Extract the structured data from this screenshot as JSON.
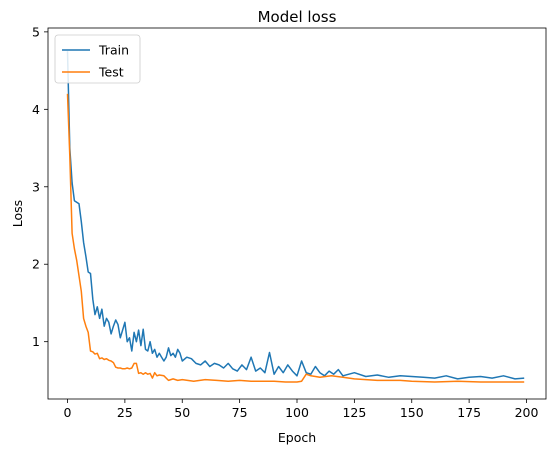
{
  "chart_data": {
    "type": "line",
    "title": "Model loss",
    "xlabel": "Epoch",
    "ylabel": "Loss",
    "xlim": [
      -8.5,
      208.5
    ],
    "ylim": [
      0.26,
      5.05
    ],
    "xticks": [
      0,
      25,
      50,
      75,
      100,
      125,
      150,
      175,
      200
    ],
    "yticks": [
      1,
      2,
      3,
      4,
      5
    ],
    "grid": false,
    "legend_position": "top-left",
    "series": [
      {
        "name": "Train",
        "color": "#1f77b4",
        "x": [
          0,
          1,
          2,
          3,
          4,
          5,
          6,
          7,
          8,
          9,
          10,
          11,
          12,
          13,
          14,
          15,
          16,
          17,
          18,
          19,
          20,
          21,
          22,
          23,
          24,
          25,
          26,
          27,
          28,
          29,
          30,
          31,
          32,
          33,
          34,
          35,
          36,
          37,
          38,
          39,
          40,
          41,
          42,
          43,
          44,
          45,
          46,
          47,
          48,
          49,
          50,
          52,
          54,
          56,
          58,
          60,
          62,
          64,
          66,
          68,
          70,
          72,
          74,
          76,
          78,
          80,
          82,
          84,
          86,
          88,
          90,
          92,
          94,
          96,
          98,
          100,
          102,
          104,
          106,
          108,
          110,
          112,
          114,
          116,
          118,
          120,
          125,
          130,
          135,
          140,
          145,
          150,
          155,
          160,
          165,
          170,
          175,
          180,
          185,
          190,
          195,
          199
        ],
        "y": [
          4.75,
          3.5,
          3.05,
          2.82,
          2.8,
          2.78,
          2.55,
          2.28,
          2.1,
          1.9,
          1.88,
          1.55,
          1.35,
          1.45,
          1.3,
          1.42,
          1.2,
          1.3,
          1.25,
          1.1,
          1.2,
          1.28,
          1.22,
          1.05,
          1.15,
          1.25,
          1.0,
          1.05,
          0.88,
          1.12,
          1.0,
          1.15,
          0.95,
          1.16,
          0.9,
          0.88,
          1.0,
          0.85,
          0.9,
          0.8,
          0.85,
          0.8,
          0.75,
          0.8,
          0.92,
          0.82,
          0.85,
          0.8,
          0.9,
          0.85,
          0.75,
          0.8,
          0.78,
          0.72,
          0.7,
          0.75,
          0.68,
          0.72,
          0.7,
          0.66,
          0.72,
          0.65,
          0.62,
          0.7,
          0.64,
          0.8,
          0.62,
          0.66,
          0.6,
          0.86,
          0.58,
          0.68,
          0.6,
          0.7,
          0.62,
          0.56,
          0.75,
          0.6,
          0.58,
          0.68,
          0.6,
          0.56,
          0.62,
          0.58,
          0.64,
          0.56,
          0.6,
          0.55,
          0.57,
          0.54,
          0.56,
          0.55,
          0.54,
          0.53,
          0.56,
          0.52,
          0.54,
          0.55,
          0.53,
          0.56,
          0.52,
          0.53
        ]
      },
      {
        "name": "Test",
        "color": "#ff7f0e",
        "x": [
          0,
          1,
          2,
          3,
          4,
          5,
          6,
          7,
          8,
          9,
          10,
          11,
          12,
          13,
          14,
          15,
          16,
          17,
          18,
          19,
          20,
          21,
          22,
          23,
          24,
          25,
          26,
          27,
          28,
          29,
          30,
          31,
          32,
          33,
          34,
          35,
          36,
          37,
          38,
          39,
          40,
          42,
          44,
          46,
          48,
          50,
          55,
          60,
          65,
          70,
          75,
          80,
          85,
          90,
          95,
          98,
          100,
          102,
          104,
          106,
          108,
          110,
          115,
          120,
          125,
          130,
          135,
          140,
          145,
          150,
          160,
          170,
          180,
          190,
          199
        ],
        "y": [
          4.2,
          3.4,
          2.4,
          2.2,
          2.05,
          1.85,
          1.65,
          1.3,
          1.2,
          1.12,
          0.88,
          0.87,
          0.84,
          0.85,
          0.78,
          0.79,
          0.77,
          0.78,
          0.76,
          0.75,
          0.73,
          0.67,
          0.66,
          0.66,
          0.65,
          0.65,
          0.66,
          0.65,
          0.66,
          0.72,
          0.72,
          0.59,
          0.6,
          0.58,
          0.6,
          0.58,
          0.59,
          0.53,
          0.6,
          0.56,
          0.57,
          0.56,
          0.5,
          0.52,
          0.5,
          0.51,
          0.49,
          0.51,
          0.5,
          0.49,
          0.5,
          0.49,
          0.49,
          0.49,
          0.48,
          0.48,
          0.48,
          0.49,
          0.58,
          0.56,
          0.55,
          0.54,
          0.56,
          0.54,
          0.52,
          0.51,
          0.5,
          0.5,
          0.5,
          0.49,
          0.48,
          0.49,
          0.48,
          0.48,
          0.48
        ]
      }
    ]
  }
}
